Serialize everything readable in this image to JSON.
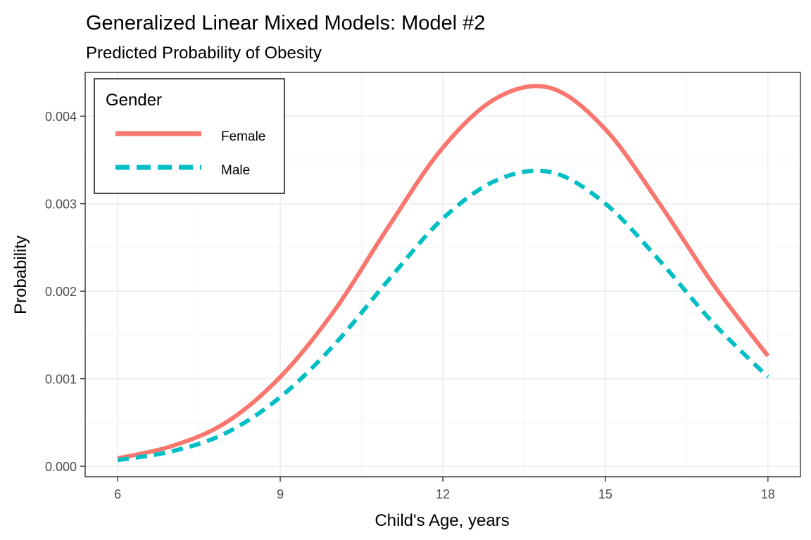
{
  "chart_data": {
    "type": "line",
    "title": "Generalized Linear Mixed Models: Model #2",
    "subtitle": "Predicted Probability of Obesity",
    "xlabel": "Child's Age, years",
    "ylabel": "Probability",
    "xlim": [
      5.4,
      18.6
    ],
    "ylim": [
      -0.00012,
      0.0045
    ],
    "xticks": [
      6,
      9,
      12,
      15,
      18
    ],
    "xtick_labels": [
      "6",
      "9",
      "12",
      "15",
      "18"
    ],
    "yticks": [
      0.0,
      0.001,
      0.002,
      0.003,
      0.004
    ],
    "ytick_labels": [
      "0.000",
      "0.001",
      "0.002",
      "0.003",
      "0.004"
    ],
    "x_minor_ticks": [
      7.5,
      10.5,
      13.5,
      16.5
    ],
    "y_minor_ticks": [
      0.0005,
      0.0015,
      0.0025,
      0.0035
    ],
    "grid": true,
    "legend": {
      "title": "Gender",
      "position": "top-left"
    },
    "x": [
      6,
      7,
      8,
      9,
      10,
      11,
      12,
      13,
      14,
      15,
      16,
      17,
      18
    ],
    "series": [
      {
        "name": "Female",
        "color": "#F8766D",
        "dash": "solid",
        "values": [
          9e-05,
          0.00023,
          0.0005,
          0.00102,
          0.00178,
          0.00274,
          0.00364,
          0.00421,
          0.00432,
          0.00385,
          0.003,
          0.00207,
          0.00126
        ]
      },
      {
        "name": "Male",
        "color": "#00BFC4",
        "dash": "dashed",
        "values": [
          7e-05,
          0.00017,
          0.00038,
          0.00079,
          0.00139,
          0.00213,
          0.00283,
          0.00327,
          0.00336,
          0.003,
          0.00235,
          0.00163,
          0.00102
        ]
      }
    ]
  }
}
